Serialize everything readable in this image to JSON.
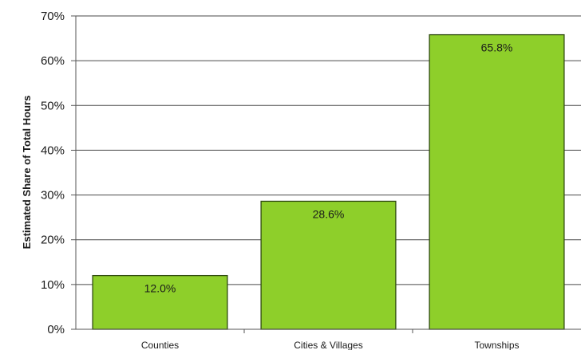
{
  "chart_data": {
    "type": "bar",
    "categories": [
      "Counties",
      "Cities & Villages",
      "Townships"
    ],
    "values": [
      12.0,
      28.6,
      65.8
    ],
    "value_labels": [
      "12.0%",
      "28.6%",
      "65.8%"
    ],
    "title": "",
    "xlabel": "",
    "ylabel": "Estimated Share of Total Hours",
    "ylim": [
      0,
      70
    ],
    "yticks": [
      0,
      10,
      20,
      30,
      40,
      50,
      60,
      70
    ],
    "ytick_labels": [
      "0%",
      "10%",
      "20%",
      "30%",
      "40%",
      "50%",
      "60%",
      "70%"
    ],
    "grid": true,
    "legend": "none",
    "bar_color": "#8ecf2a",
    "bar_edge_color": "#2f4a0f"
  }
}
